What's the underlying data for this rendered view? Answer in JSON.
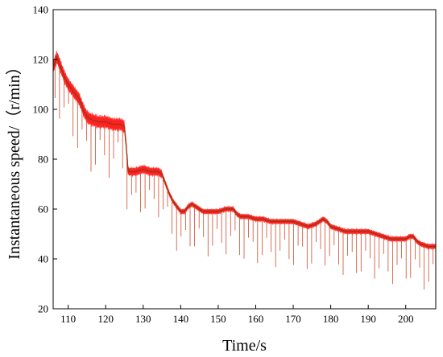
{
  "chart_data": {
    "type": "line",
    "xlabel": "Time/s",
    "ylabel": "Instantaneous speed/（r/min）",
    "xlim": [
      106,
      208
    ],
    "ylim": [
      20,
      140
    ],
    "xticks": [
      110,
      120,
      130,
      140,
      150,
      160,
      170,
      180,
      190,
      200
    ],
    "yticks": [
      20,
      40,
      60,
      80,
      100,
      120,
      140
    ],
    "grid": false,
    "colors": {
      "fill": "#ff2020",
      "trend": "#8a3b12",
      "spikes": "#d04a2a"
    },
    "series": [
      {
        "x": [
          106,
          107,
          108,
          109,
          110,
          111,
          112,
          113,
          114,
          115,
          116,
          118,
          120,
          122,
          124,
          125,
          125.5,
          126,
          127,
          128,
          130,
          132,
          134,
          135,
          136,
          137,
          138,
          139,
          140,
          141,
          142,
          143,
          144,
          145,
          146,
          148,
          150,
          152,
          153,
          154,
          155,
          156,
          158,
          160,
          162,
          164,
          166,
          168,
          170,
          172,
          174,
          176,
          177,
          178,
          179,
          180,
          182,
          184,
          186,
          188,
          190,
          192,
          194,
          196,
          198,
          200,
          201,
          202,
          203,
          204,
          206,
          208
        ],
        "y": [
          117,
          121,
          117,
          113,
          110,
          108,
          106,
          104,
          100,
          97,
          96,
          95,
          95,
          94,
          94,
          93,
          85,
          75,
          75,
          75,
          76,
          75,
          75,
          74,
          70,
          66,
          63,
          61,
          59,
          59,
          61,
          62,
          61,
          60,
          59,
          59,
          59,
          60,
          60,
          60,
          58,
          57,
          57,
          56,
          56,
          55,
          55,
          55,
          55,
          54,
          53,
          54,
          55,
          56,
          55,
          53,
          52,
          51,
          51,
          51,
          51,
          50,
          49,
          48,
          48,
          48,
          49,
          49,
          47,
          46,
          45,
          45
        ]
      }
    ],
    "band_halfwidth": [
      {
        "from": 106,
        "to": 125,
        "value": 3
      },
      {
        "from": 125,
        "to": 135,
        "value": 2
      },
      {
        "from": 135,
        "to": 208,
        "value": 1.2
      }
    ],
    "downward_spikes": {
      "start": 106.5,
      "end": 208,
      "step": 1.2,
      "depth_min": 7,
      "depth_max": 22
    }
  }
}
